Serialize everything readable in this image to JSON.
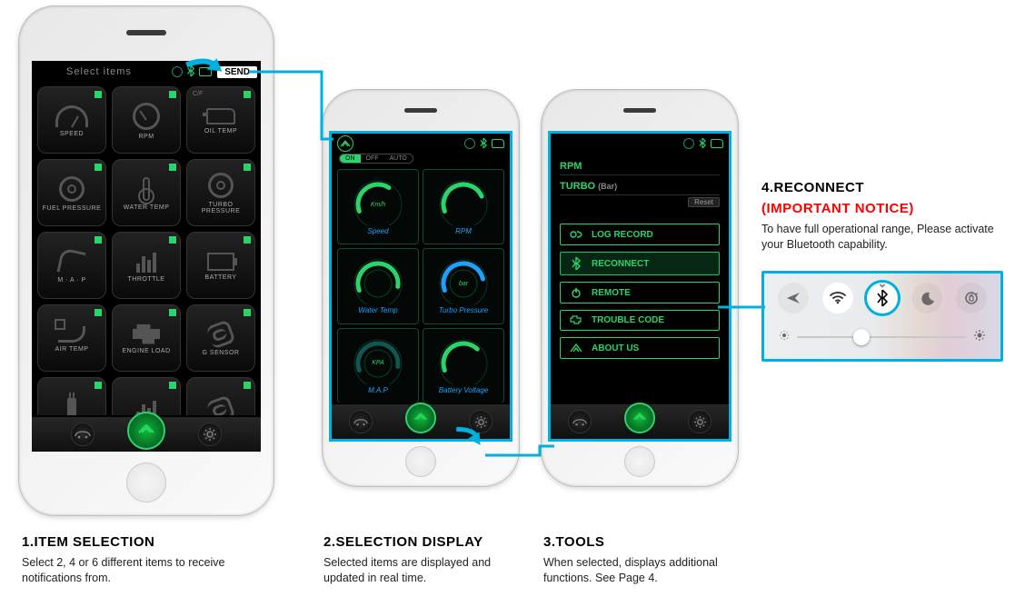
{
  "colors": {
    "accent_green": "#2bd46a",
    "accent_cyan": "#00b0e0",
    "red": "#ff0000",
    "link_blue": "#1ea0ff"
  },
  "screen1": {
    "title": "Select items",
    "send_label": "SEND",
    "tiles": [
      {
        "label": "SPEED",
        "glyph": "gauge"
      },
      {
        "label": "RPM",
        "glyph": "rpm"
      },
      {
        "label": "OIL TEMP",
        "glyph": "oil",
        "corner": "C/F"
      },
      {
        "label": "FUEL PRESSURE",
        "glyph": "turbo"
      },
      {
        "label": "WATER TEMP",
        "glyph": "therm"
      },
      {
        "label": "TURBO PRESSURE",
        "glyph": "turbo"
      },
      {
        "label": "M · A · P",
        "glyph": "pipe"
      },
      {
        "label": "THROTTLE",
        "glyph": "bars"
      },
      {
        "label": "BATTERY",
        "glyph": "box"
      },
      {
        "label": "AIR TEMP",
        "glyph": "exh"
      },
      {
        "label": "ENGINE LOAD",
        "glyph": "eng"
      },
      {
        "label": "G SENSOR",
        "glyph": "coil"
      },
      {
        "label": "",
        "glyph": "plug"
      },
      {
        "label": "",
        "glyph": "bars"
      },
      {
        "label": "",
        "glyph": "coil"
      }
    ]
  },
  "screen2": {
    "seg": {
      "on": "ON",
      "off": "OFF",
      "auto": "AUTO"
    },
    "gauges": [
      {
        "unit": "Km/h",
        "label": "Speed",
        "arc": "#2bd46a",
        "sweep": 0.65
      },
      {
        "unit": "",
        "label": "RPM",
        "arc": "#2bd46a",
        "sweep": 0.8
      },
      {
        "unit": "",
        "label": "Water Temp",
        "arc": "#2bd46a",
        "sweep": 0.95,
        "ring": true
      },
      {
        "unit": "bar",
        "label": "Turbo Pressure",
        "arc": "#1ea0ff",
        "sweep": 0.85,
        "ring": true
      },
      {
        "unit": "KPA",
        "label": "M.A.P",
        "arc": "#124",
        "sweep": 0.95,
        "ring": true,
        "dim": true
      },
      {
        "unit": "",
        "label": "Battery Voltage",
        "arc": "#2bd46a",
        "sweep": 0.7
      }
    ]
  },
  "screen3": {
    "rpm_label": "RPM",
    "turbo_label": "TURBO",
    "turbo_unit": "(Bar)",
    "reset": "Reset",
    "menu": [
      {
        "icon": "rec",
        "label": "LOG RECORD"
      },
      {
        "icon": "bt",
        "label": "RECONNECT",
        "highlight": true
      },
      {
        "icon": "power",
        "label": "REMOTE"
      },
      {
        "icon": "engine",
        "label": "TROUBLE CODE"
      },
      {
        "icon": "logo",
        "label": "ABOUT US"
      }
    ]
  },
  "captions": {
    "c1": {
      "h": "1.ITEM SELECTION",
      "p": "Select 2, 4 or 6 different items to receive notifications from."
    },
    "c2": {
      "h": "2.SELECTION DISPLAY",
      "p": "Selected items are displayed and updated in real time."
    },
    "c3": {
      "h": "3.TOOLS",
      "p": "When selected, displays additional functions. See Page 4."
    },
    "c4": {
      "h": "4.RECONNECT",
      "h2": "(IMPORTANT NOTICE)",
      "p": "To have full operational range, Please activate your Bluetooth capability."
    }
  },
  "control_center": {
    "icons": [
      "airplane",
      "wifi",
      "bluetooth",
      "moon",
      "rotate"
    ],
    "slider_pos": 0.38
  }
}
